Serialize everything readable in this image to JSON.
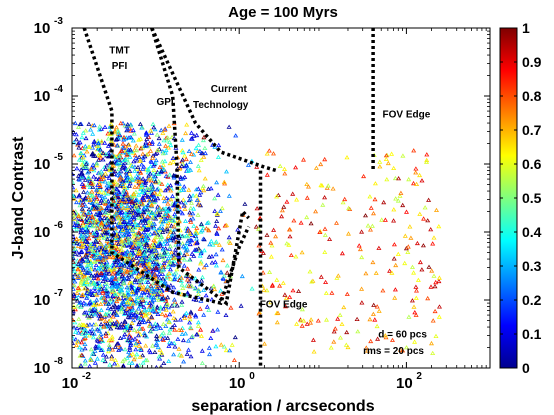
{
  "chart_data": {
    "type": "scatter",
    "title": "Age = 100 Myrs",
    "xlabel": "separation / arcseconds",
    "ylabel": "J-band Contrast",
    "x_scale": "log",
    "y_scale": "log",
    "xlim": [
      0.01,
      1000
    ],
    "ylim": [
      1e-08,
      0.001
    ],
    "x_ticks": [
      {
        "value": 0.01,
        "base": "10",
        "exp": "-2"
      },
      {
        "value": 1,
        "base": "10",
        "exp": "0"
      },
      {
        "value": 100,
        "base": "10",
        "exp": "2"
      }
    ],
    "y_ticks": [
      {
        "value": 0.001,
        "base": "10",
        "exp": "-3"
      },
      {
        "value": 0.0001,
        "base": "10",
        "exp": "-4"
      },
      {
        "value": 1e-05,
        "base": "10",
        "exp": "-5"
      },
      {
        "value": 1e-06,
        "base": "10",
        "exp": "-6"
      },
      {
        "value": 1e-07,
        "base": "10",
        "exp": "-7"
      },
      {
        "value": 1e-08,
        "base": "10",
        "exp": "-8"
      }
    ],
    "marker": "triangle",
    "colorbar": {
      "min": 0,
      "max": 1,
      "colormap": "jet",
      "ticks": [
        "1",
        "0.9",
        "0.8",
        "0.7",
        "0.6",
        "0.5",
        "0.4",
        "0.3",
        "0.2",
        "0.1",
        "0"
      ]
    },
    "curves": [
      {
        "label": "TMT PFI",
        "points": [
          [
            0.014,
            0.001
          ],
          [
            0.03,
            6e-05
          ],
          [
            0.03,
            5e-07
          ],
          [
            0.16,
            1.3e-07
          ],
          [
            0.6,
            9e-08
          ],
          [
            1.0,
            6e-07
          ],
          [
            1.3,
            1.2e-06
          ]
        ]
      },
      {
        "label": "GPI",
        "points": [
          [
            0.09,
            0.001
          ],
          [
            0.16,
            0.0001
          ],
          [
            0.18,
            1e-05
          ],
          [
            0.19,
            3e-07
          ],
          [
            0.7,
            9e-08
          ],
          [
            1.1,
            2e-06
          ],
          [
            1.3,
            1.6e-06
          ]
        ]
      },
      {
        "label": "Current Technology",
        "points": [
          [
            0.09,
            0.001
          ],
          [
            0.3,
            4e-05
          ],
          [
            0.6,
            1.5e-05
          ],
          [
            2.0,
            9e-06
          ],
          [
            2.8,
            8e-06
          ]
        ]
      },
      {
        "label": "FOV Edge",
        "points": [
          [
            1.8,
            8e-06
          ],
          [
            1.8,
            1e-08
          ]
        ]
      },
      {
        "label": "FOV Edge",
        "points": [
          [
            40,
            0.001
          ],
          [
            40,
            8e-06
          ]
        ]
      }
    ],
    "annotations": [
      {
        "text": "TMT",
        "x": 0.037,
        "y": 0.00042
      },
      {
        "text": "PFI",
        "x": 0.037,
        "y": 0.00025
      },
      {
        "text": "GPI",
        "x": 0.13,
        "y": 7.4e-05
      },
      {
        "text": "Current",
        "x": 0.75,
        "y": 0.000115
      },
      {
        "text": "Technology",
        "x": 0.6,
        "y": 6.7e-05
      },
      {
        "text": "FOV Edge",
        "x": 100,
        "y": 4.8e-05
      },
      {
        "text": "FOV Edge",
        "x": 3.4,
        "y": 7.7e-08
      },
      {
        "text": "d = 60 pcs",
        "x": 90,
        "y": 2.8e-08
      },
      {
        "text": "rms = 20 pcs",
        "x": 70,
        "y": 1.6e-08
      }
    ]
  }
}
